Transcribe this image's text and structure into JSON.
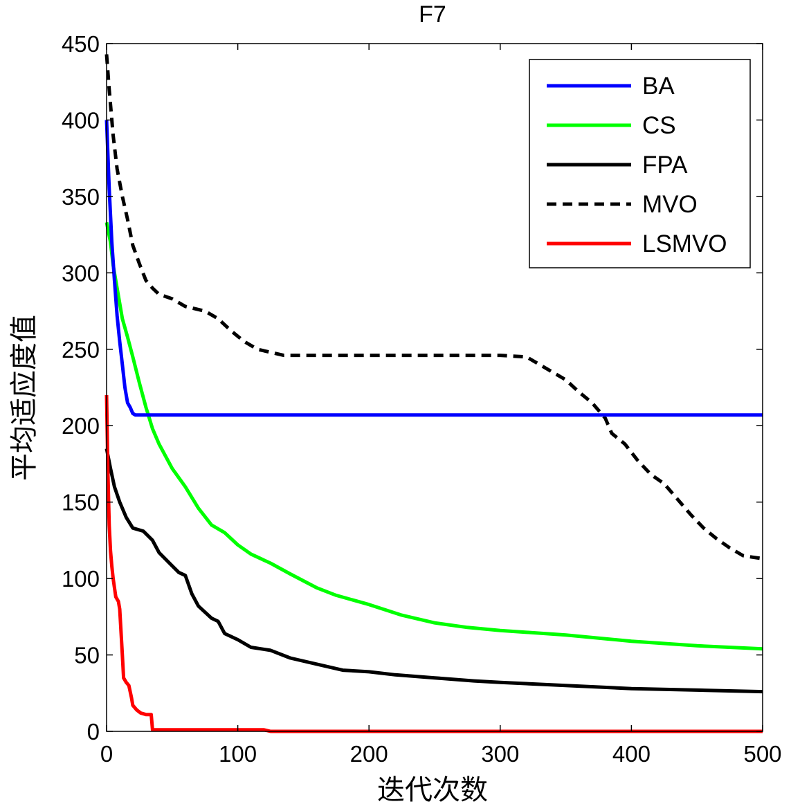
{
  "chart_data": {
    "type": "line",
    "title": "F7",
    "xlabel": "迭代次数",
    "ylabel": "平均适应度值",
    "xlim": [
      0,
      500
    ],
    "ylim": [
      0,
      450
    ],
    "xticks": [
      0,
      100,
      200,
      300,
      400,
      500
    ],
    "yticks": [
      0,
      50,
      100,
      150,
      200,
      250,
      300,
      350,
      400,
      450
    ],
    "grid": false,
    "legend_position": "top-right",
    "series": [
      {
        "name": "BA",
        "color": "#0000ff",
        "dash": "solid",
        "points": [
          [
            0,
            400
          ],
          [
            2,
            355
          ],
          [
            4,
            320
          ],
          [
            6,
            295
          ],
          [
            8,
            272
          ],
          [
            10,
            255
          ],
          [
            12,
            240
          ],
          [
            14,
            225
          ],
          [
            16,
            215
          ],
          [
            18,
            212
          ],
          [
            20,
            208
          ],
          [
            22,
            207
          ],
          [
            500,
            207
          ]
        ]
      },
      {
        "name": "CS",
        "color": "#00ff00",
        "dash": "solid",
        "points": [
          [
            0,
            333
          ],
          [
            3,
            320
          ],
          [
            5,
            305
          ],
          [
            8,
            290
          ],
          [
            12,
            270
          ],
          [
            16,
            258
          ],
          [
            20,
            245
          ],
          [
            25,
            228
          ],
          [
            30,
            212
          ],
          [
            35,
            198
          ],
          [
            40,
            188
          ],
          [
            50,
            172
          ],
          [
            60,
            160
          ],
          [
            70,
            146
          ],
          [
            80,
            135
          ],
          [
            90,
            130
          ],
          [
            100,
            122
          ],
          [
            110,
            116
          ],
          [
            125,
            110
          ],
          [
            140,
            103
          ],
          [
            160,
            94
          ],
          [
            175,
            89
          ],
          [
            200,
            83
          ],
          [
            225,
            76
          ],
          [
            250,
            71
          ],
          [
            275,
            68
          ],
          [
            300,
            66
          ],
          [
            350,
            63
          ],
          [
            400,
            59
          ],
          [
            450,
            56
          ],
          [
            500,
            54
          ]
        ]
      },
      {
        "name": "FPA",
        "color": "#000000",
        "dash": "solid",
        "points": [
          [
            0,
            185
          ],
          [
            3,
            172
          ],
          [
            6,
            160
          ],
          [
            10,
            150
          ],
          [
            15,
            140
          ],
          [
            20,
            133
          ],
          [
            28,
            131
          ],
          [
            35,
            125
          ],
          [
            40,
            117
          ],
          [
            48,
            110
          ],
          [
            55,
            104
          ],
          [
            60,
            102
          ],
          [
            65,
            90
          ],
          [
            70,
            82
          ],
          [
            80,
            74
          ],
          [
            85,
            72
          ],
          [
            90,
            64
          ],
          [
            100,
            60
          ],
          [
            110,
            55
          ],
          [
            125,
            53
          ],
          [
            140,
            48
          ],
          [
            160,
            44
          ],
          [
            180,
            40
          ],
          [
            200,
            39
          ],
          [
            220,
            37
          ],
          [
            250,
            35
          ],
          [
            280,
            33
          ],
          [
            300,
            32
          ],
          [
            350,
            30
          ],
          [
            400,
            28
          ],
          [
            450,
            27
          ],
          [
            500,
            26
          ]
        ]
      },
      {
        "name": "MVO",
        "color": "#000000",
        "dash": "dashed",
        "points": [
          [
            0,
            443
          ],
          [
            2,
            420
          ],
          [
            5,
            390
          ],
          [
            8,
            368
          ],
          [
            12,
            350
          ],
          [
            16,
            335
          ],
          [
            20,
            318
          ],
          [
            25,
            306
          ],
          [
            30,
            295
          ],
          [
            35,
            290
          ],
          [
            40,
            286
          ],
          [
            50,
            283
          ],
          [
            60,
            278
          ],
          [
            75,
            275
          ],
          [
            85,
            270
          ],
          [
            95,
            262
          ],
          [
            105,
            255
          ],
          [
            115,
            250
          ],
          [
            125,
            248
          ],
          [
            135,
            246
          ],
          [
            150,
            246
          ],
          [
            200,
            246
          ],
          [
            250,
            246
          ],
          [
            300,
            246
          ],
          [
            320,
            245
          ],
          [
            330,
            240
          ],
          [
            340,
            235
          ],
          [
            350,
            230
          ],
          [
            360,
            222
          ],
          [
            370,
            215
          ],
          [
            380,
            205
          ],
          [
            385,
            195
          ],
          [
            395,
            188
          ],
          [
            405,
            177
          ],
          [
            415,
            168
          ],
          [
            425,
            162
          ],
          [
            435,
            152
          ],
          [
            445,
            142
          ],
          [
            455,
            133
          ],
          [
            465,
            126
          ],
          [
            475,
            120
          ],
          [
            485,
            115
          ],
          [
            492,
            114
          ],
          [
            500,
            113
          ]
        ]
      },
      {
        "name": "LSMVO",
        "color": "#ff0000",
        "dash": "solid",
        "points": [
          [
            0,
            220
          ],
          [
            1,
            170
          ],
          [
            2,
            135
          ],
          [
            3,
            118
          ],
          [
            4,
            108
          ],
          [
            5,
            100
          ],
          [
            7,
            88
          ],
          [
            9,
            85
          ],
          [
            10,
            80
          ],
          [
            11,
            65
          ],
          [
            12,
            50
          ],
          [
            13,
            35
          ],
          [
            15,
            32
          ],
          [
            17,
            30
          ],
          [
            19,
            22
          ],
          [
            20,
            17
          ],
          [
            23,
            14
          ],
          [
            26,
            12
          ],
          [
            30,
            11
          ],
          [
            34,
            11
          ],
          [
            35,
            1
          ],
          [
            40,
            1
          ],
          [
            60,
            1
          ],
          [
            80,
            1
          ],
          [
            100,
            1
          ],
          [
            120,
            1
          ],
          [
            125,
            0
          ],
          [
            200,
            0
          ],
          [
            300,
            0
          ],
          [
            400,
            0
          ],
          [
            500,
            0
          ]
        ]
      }
    ]
  }
}
